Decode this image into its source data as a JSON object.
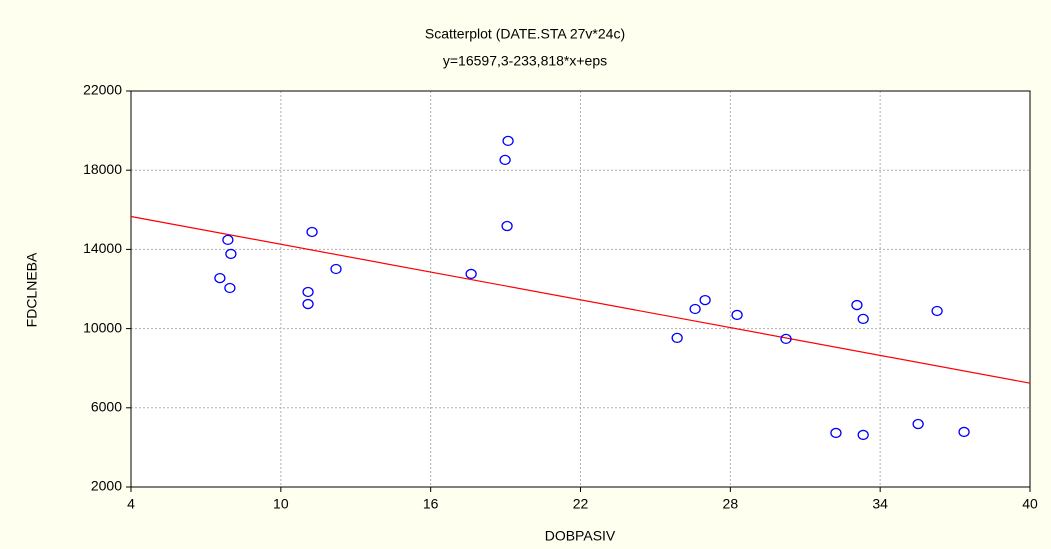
{
  "chart_data": {
    "type": "scatter",
    "title": "Scatterplot (DATE.STA 27v*24c)",
    "subtitle": "y=16597,3-233,818*x+eps",
    "x_label": "DOBPASIV",
    "y_label": "FDCLNEBA",
    "x": [
      7.56,
      7.88,
      8.0,
      7.96,
      11.09,
      11.09,
      11.25,
      12.21,
      17.62,
      18.98,
      19.1,
      19.06,
      25.87,
      26.59,
      26.99,
      28.27,
      30.23,
      32.23,
      33.07,
      33.32,
      33.32,
      35.52,
      36.28,
      37.36
    ],
    "values": [
      12550,
      14480,
      13770,
      12050,
      11850,
      11240,
      14880,
      13010,
      12760,
      18520,
      19480,
      15180,
      9530,
      10990,
      11440,
      10690,
      9480,
      4730,
      11190,
      10490,
      4630,
      5180,
      10890,
      4780
    ],
    "color": "#0000ff",
    "fit": {
      "intercept": 16597.3,
      "slope": -233.818,
      "color": "#ff0000"
    },
    "xlim": [
      4,
      40
    ],
    "xticks": [
      4,
      10,
      16,
      22,
      28,
      34,
      40
    ],
    "ylim": [
      2000,
      22000
    ],
    "yticks": [
      2000,
      6000,
      10000,
      14000,
      18000,
      22000
    ],
    "grid": true
  }
}
